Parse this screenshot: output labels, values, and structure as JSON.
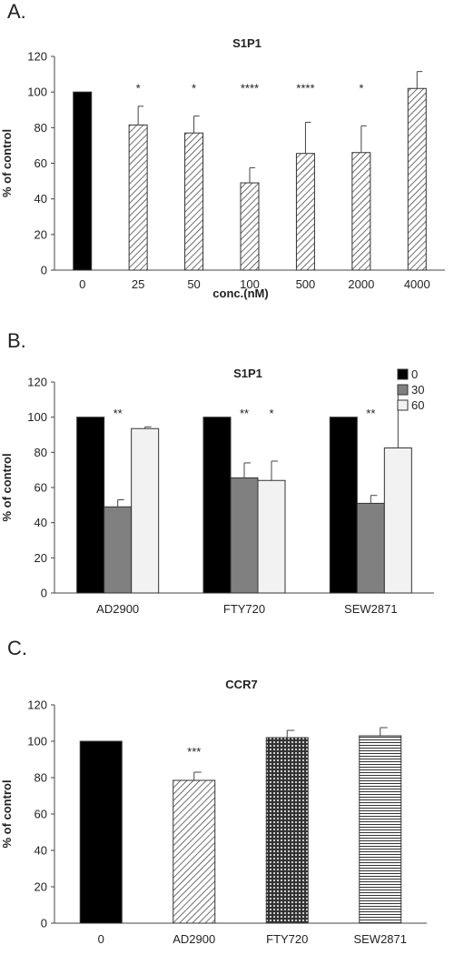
{
  "panels": [
    {
      "label": "A."
    },
    {
      "label": "B."
    },
    {
      "label": "C."
    }
  ],
  "chart_data": [
    {
      "type": "bar",
      "title": "S1P1",
      "xlabel": "conc.(nM)",
      "ylabel": "% of control",
      "ylim": [
        0,
        120
      ],
      "yticks": [
        0,
        20,
        40,
        60,
        80,
        100,
        120
      ],
      "categories": [
        "0",
        "25",
        "50",
        "100",
        "500",
        "2000",
        "4000"
      ],
      "values": [
        100,
        81.5,
        77,
        49,
        65.5,
        66,
        102
      ],
      "errors": [
        0,
        10.5,
        9.5,
        8.5,
        17.5,
        15,
        9.5
      ],
      "significance": [
        "",
        "*",
        "*",
        "****",
        "****",
        "*",
        ""
      ],
      "fills": [
        "solid",
        "hatch",
        "hatch",
        "hatch",
        "hatch",
        "hatch",
        "hatch"
      ],
      "grid": false
    },
    {
      "type": "bar",
      "title": "S1P1",
      "xlabel": "",
      "ylabel": "% of control",
      "ylim": [
        0,
        120
      ],
      "yticks": [
        0,
        20,
        40,
        60,
        80,
        100,
        120
      ],
      "categories": [
        "AD2900",
        "FTY720",
        "SEW2871"
      ],
      "series": [
        {
          "name": "0",
          "color": "#000000",
          "values": [
            100,
            100,
            100
          ],
          "errors": [
            0,
            0,
            0
          ],
          "significance": [
            "",
            "",
            ""
          ]
        },
        {
          "name": "30",
          "color": "#808080",
          "values": [
            49,
            65.5,
            51
          ],
          "errors": [
            4,
            8.5,
            4.5
          ],
          "significance": [
            "**",
            "**",
            "**"
          ]
        },
        {
          "name": "60",
          "color": "#f2f2f2",
          "values": [
            93.5,
            64,
            82.5
          ],
          "errors": [
            1,
            11,
            32
          ],
          "significance": [
            "",
            "*",
            ""
          ]
        }
      ],
      "legend": "top-right",
      "grid": false
    },
    {
      "type": "bar",
      "title": "CCR7",
      "xlabel": "",
      "ylabel": "% of control",
      "ylim": [
        0,
        120
      ],
      "yticks": [
        0,
        20,
        40,
        60,
        80,
        100,
        120
      ],
      "categories": [
        "0",
        "AD2900",
        "FTY720",
        "SEW2871"
      ],
      "values": [
        100,
        78.5,
        102,
        103
      ],
      "errors": [
        0,
        4.5,
        4,
        4.5
      ],
      "significance": [
        "",
        "***",
        "",
        ""
      ],
      "fills": [
        "solid",
        "hatch",
        "dots",
        "hlines"
      ],
      "grid": false
    }
  ]
}
